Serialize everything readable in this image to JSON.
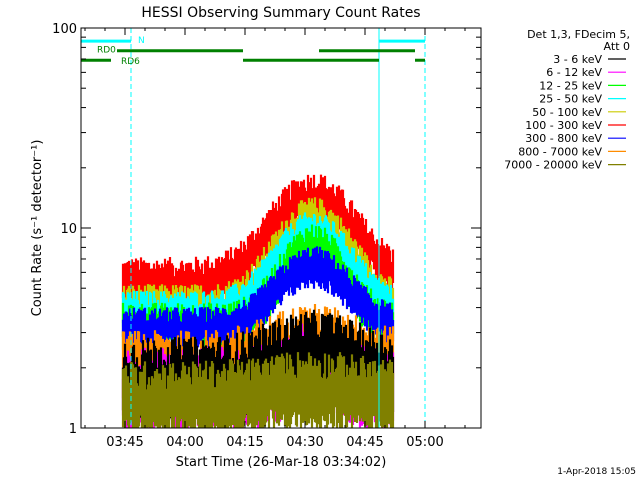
{
  "chart_data": {
    "type": "line",
    "title": "HESSI Observing Summary Count Rates",
    "xlabel": "Start Time (26-Mar-18 03:34:02)",
    "ylabel": "Count Rate (s⁻¹ detector⁻¹)",
    "timestamp": "1-Apr-2018 15:05",
    "x_unit": "minutes after 03:34:02",
    "xlim": [
      0,
      100
    ],
    "ylim": [
      1,
      100
    ],
    "y_scale": "log",
    "x_ticks": [
      {
        "label": "03:45",
        "value": 11
      },
      {
        "label": "04:00",
        "value": 26
      },
      {
        "label": "04:15",
        "value": 41
      },
      {
        "label": "04:30",
        "value": 56
      },
      {
        "label": "04:45",
        "value": 71
      },
      {
        "label": "05:00",
        "value": 86
      }
    ],
    "y_ticks": [
      {
        "label": "1",
        "value": 1
      },
      {
        "label": "10",
        "value": 10
      },
      {
        "label": "100",
        "value": 100
      }
    ],
    "legend": {
      "header": [
        "Det 1,3, FDecim 5,",
        "Att 0"
      ],
      "placement": "right",
      "entries": [
        {
          "label": "3 - 6 keV",
          "color": "#000000"
        },
        {
          "label": "6 - 12 keV",
          "color": "#ff00ff"
        },
        {
          "label": "12 - 25 keV",
          "color": "#00ff00"
        },
        {
          "label": "25 - 50 keV",
          "color": "#00ffff"
        },
        {
          "label": "50 - 100 keV",
          "color": "#cccc00"
        },
        {
          "label": "100 - 300 keV",
          "color": "#ff0000"
        },
        {
          "label": "300 - 800 keV",
          "color": "#0000ff"
        },
        {
          "label": "800 - 7000 keV",
          "color": "#ff8c00"
        },
        {
          "label": "7000 - 20000 keV",
          "color": "#808000"
        }
      ]
    },
    "data_start": 10.5,
    "data_end": 78,
    "peak_time": 58,
    "series": [
      {
        "name": "100 - 300 keV",
        "color": "#ff0000",
        "base": 5.6,
        "peak": 15.0,
        "width": 9,
        "spread": 1.28,
        "floor": 1.0
      },
      {
        "name": "50 - 100 keV",
        "color": "#cccc00",
        "base": 4.2,
        "peak": 11.5,
        "width": 8,
        "spread": 1.25,
        "floor": 1.0
      },
      {
        "name": "25 - 50 keV",
        "color": "#00ffff",
        "base": 4.0,
        "peak": 10.0,
        "width": 8,
        "spread": 1.22,
        "floor": 1.0
      },
      {
        "name": "12 - 25 keV",
        "color": "#00ff00",
        "base": 3.4,
        "peak": 8.5,
        "width": 7,
        "spread": 1.25,
        "floor": 1.0
      },
      {
        "name": "300 - 800 keV",
        "color": "#0000ff",
        "base": 3.3,
        "peak": 6.7,
        "width": 8,
        "spread": 1.22,
        "floor": 1.0
      },
      {
        "name": "800 - 7000 keV",
        "color": "#ff8c00",
        "base": 2.2,
        "peak": 3.0,
        "width": 10,
        "spread": 1.4,
        "floor": 1.0
      },
      {
        "name": "6 - 12 keV",
        "color": "#ff00ff",
        "base": 1.7,
        "peak": 2.3,
        "width": 6,
        "spread": 1.5,
        "floor": 1.0
      },
      {
        "name": "3 - 6 keV",
        "color": "#000000",
        "base": 1.9,
        "peak": 2.6,
        "width": 10,
        "spread": 1.5,
        "floor": 1.0
      },
      {
        "name": "7000 - 20000 keV",
        "color": "#808000",
        "base": 1.5,
        "peak": 1.7,
        "width": 10,
        "spread": 1.45,
        "floor": 1.0
      }
    ],
    "vertical_markers": [
      {
        "x": 0,
        "color": "#00ffff",
        "style": "solid"
      },
      {
        "x": 12.5,
        "color": "#00ffff",
        "style": "dashed"
      },
      {
        "x": 74.5,
        "color": "#00ffff",
        "style": "solid"
      },
      {
        "x": 86,
        "color": "#00ffff",
        "style": "dashed"
      }
    ],
    "flags": [
      {
        "label": "N",
        "color": "#00ffff",
        "level": 86,
        "segments": [
          [
            0,
            12.5
          ],
          [
            74.5,
            86
          ]
        ]
      },
      {
        "label": "RD0",
        "color": "#008000",
        "level": 77,
        "segments": [
          [
            9,
            40.5
          ],
          [
            59.5,
            83.5
          ]
        ]
      },
      {
        "label": "RD6",
        "color": "#008000",
        "level": 69,
        "segments": [
          [
            0,
            7.5
          ],
          [
            40.5,
            74.5
          ],
          [
            83.5,
            86
          ]
        ]
      }
    ]
  }
}
